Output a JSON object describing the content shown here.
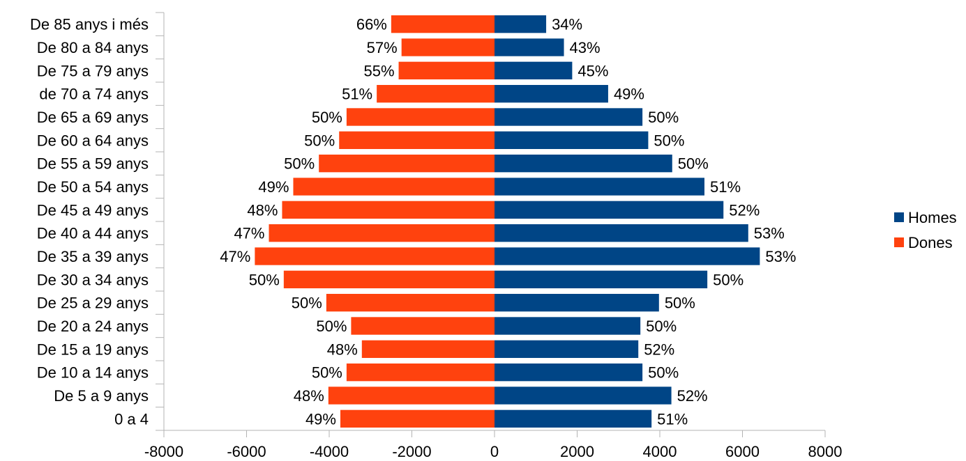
{
  "chart_data": {
    "type": "bar",
    "orientation": "horizontal",
    "categories": [
      "0 a 4",
      "De 5 a 9 anys",
      "De 10 a 14 anys",
      "De 15 a 19 anys",
      "De 20 a 24 anys",
      "De 25 a 29 anys",
      "De 30 a 34 anys",
      "De 35 a 39 anys",
      "De 40 a 44 anys",
      "De 45 a 49 anys",
      "De 50 a 54 anys",
      "De 55 a 59 anys",
      "De 60 a 64 anys",
      "De 65 a 69 anys",
      "de 70 a 74 anys",
      "De 75 a 79 anys",
      "De 80 a 84 anys",
      "De 85 anys i més"
    ],
    "series": [
      {
        "name": "Homes",
        "color": "#004586",
        "values": [
          3800,
          4280,
          3580,
          3480,
          3530,
          3980,
          5150,
          6420,
          6140,
          5540,
          5080,
          4300,
          3720,
          3580,
          2750,
          1880,
          1680,
          1250
        ],
        "labels": [
          "51%",
          "52%",
          "50%",
          "52%",
          "50%",
          "50%",
          "50%",
          "53%",
          "53%",
          "52%",
          "51%",
          "50%",
          "50%",
          "50%",
          "49%",
          "45%",
          "43%",
          "34%"
        ]
      },
      {
        "name": "Dones",
        "color": "#ff420e",
        "values": [
          -3730,
          -4020,
          -3580,
          -3210,
          -3470,
          -4070,
          -5100,
          -5800,
          -5460,
          -5140,
          -4870,
          -4250,
          -3760,
          -3580,
          -2850,
          -2320,
          -2250,
          -2500
        ],
        "labels": [
          "49%",
          "48%",
          "50%",
          "48%",
          "50%",
          "50%",
          "50%",
          "47%",
          "47%",
          "48%",
          "49%",
          "50%",
          "50%",
          "50%",
          "51%",
          "55%",
          "57%",
          "66%"
        ]
      }
    ],
    "xlim": [
      -8000,
      8000
    ],
    "xticks": [
      "-8000",
      "-6000",
      "-4000",
      "-2000",
      "0",
      "2000",
      "4000",
      "6000",
      "8000"
    ],
    "legend": "right",
    "grid": false
  }
}
